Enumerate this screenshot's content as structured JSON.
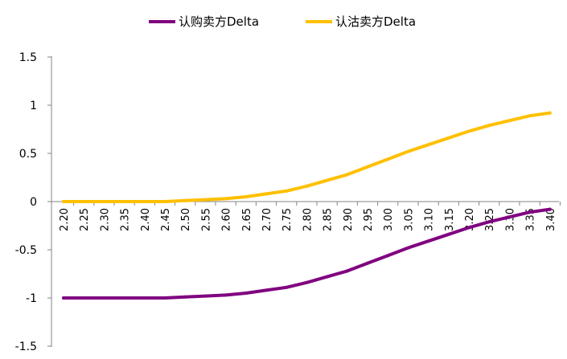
{
  "chart_data": {
    "type": "line",
    "title": "",
    "xlabel": "",
    "ylabel": "",
    "ylim": [
      -1.5,
      1.5
    ],
    "yticks": [
      "1.5",
      "1",
      "0.5",
      "0",
      "-0.5",
      "-1",
      "-1.5"
    ],
    "grid": false,
    "legend_position": "top-center",
    "categories": [
      "2.20",
      "2.25",
      "2.30",
      "2.35",
      "2.40",
      "2.45",
      "2.50",
      "2.55",
      "2.60",
      "2.65",
      "2.70",
      "2.75",
      "2.80",
      "2.85",
      "2.90",
      "2.95",
      "3.00",
      "3.05",
      "3.10",
      "3.15",
      "3.20",
      "3.25",
      "3.30",
      "3.35",
      "3.40"
    ],
    "series": [
      {
        "name": "认购卖方Delta",
        "color": "#800080",
        "values": [
          -1.0,
          -1.0,
          -1.0,
          -1.0,
          -1.0,
          -1.0,
          -0.99,
          -0.98,
          -0.97,
          -0.95,
          -0.92,
          -0.89,
          -0.84,
          -0.78,
          -0.72,
          -0.64,
          -0.56,
          -0.48,
          -0.41,
          -0.34,
          -0.27,
          -0.21,
          -0.16,
          -0.11,
          -0.08
        ]
      },
      {
        "name": "认沽卖方Delta",
        "color": "#FFC000",
        "values": [
          0.0,
          0.0,
          0.0,
          0.0,
          0.0,
          0.0,
          0.01,
          0.02,
          0.03,
          0.05,
          0.08,
          0.11,
          0.16,
          0.22,
          0.28,
          0.36,
          0.44,
          0.52,
          0.59,
          0.66,
          0.73,
          0.79,
          0.84,
          0.89,
          0.92
        ]
      }
    ]
  }
}
